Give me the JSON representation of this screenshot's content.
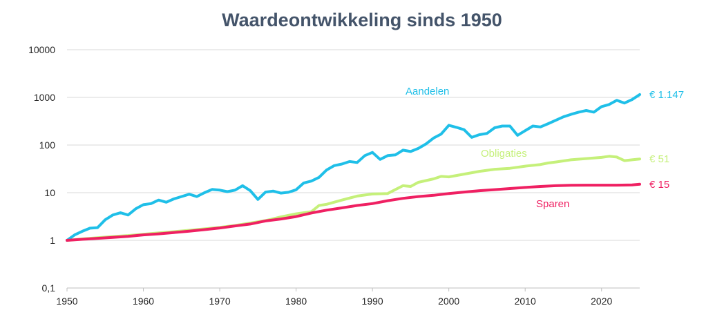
{
  "chart_data": {
    "type": "line",
    "title": "Waardeontwikkeling sinds 1950",
    "xlabel": "",
    "ylabel": "",
    "y_scale": "log",
    "xlim": [
      1950,
      2025
    ],
    "ylim": [
      0.1,
      10000
    ],
    "grid": "horizontal",
    "x_ticks": [
      "1950",
      "1960",
      "1970",
      "1980",
      "1990",
      "2000",
      "2010",
      "2020"
    ],
    "y_ticks": [
      "10000",
      "1000",
      "100",
      "10",
      "1",
      "0,1"
    ],
    "y_tick_values": [
      10000,
      1000,
      100,
      10,
      1,
      0.1
    ],
    "x_tick_values": [
      1950,
      1960,
      1970,
      1980,
      1990,
      2000,
      2010,
      2020
    ],
    "series": [
      {
        "name": "Aandelen",
        "end_label": "€ 1.147",
        "color": "#1fbfe8",
        "x": [
          1950,
          1951,
          1952,
          1953,
          1954,
          1955,
          1956,
          1957,
          1958,
          1959,
          1960,
          1961,
          1962,
          1963,
          1964,
          1965,
          1966,
          1967,
          1968,
          1969,
          1970,
          1971,
          1972,
          1973,
          1974,
          1975,
          1976,
          1977,
          1978,
          1979,
          1980,
          1981,
          1982,
          1983,
          1984,
          1985,
          1986,
          1987,
          1988,
          1989,
          1990,
          1991,
          1992,
          1993,
          1994,
          1995,
          1996,
          1997,
          1998,
          1999,
          2000,
          2001,
          2002,
          2003,
          2004,
          2005,
          2006,
          2007,
          2008,
          2009,
          2010,
          2011,
          2012,
          2013,
          2014,
          2015,
          2016,
          2017,
          2018,
          2019,
          2020,
          2021,
          2022,
          2023,
          2024,
          2025
        ],
        "values": [
          1,
          1.3,
          1.55,
          1.8,
          1.85,
          2.7,
          3.4,
          3.8,
          3.4,
          4.6,
          5.6,
          5.9,
          7.0,
          6.3,
          7.4,
          8.3,
          9.3,
          8.3,
          10.0,
          11.7,
          11.3,
          10.5,
          11.3,
          14.0,
          11.0,
          7.2,
          10.3,
          10.8,
          9.8,
          10.2,
          11.5,
          16.0,
          17.5,
          21.0,
          30.0,
          37.0,
          40.0,
          45.0,
          43.0,
          60.0,
          70.0,
          50.0,
          60.0,
          62.0,
          78.0,
          73.0,
          85.0,
          105.0,
          140.0,
          170.0,
          260.0,
          235.0,
          210.0,
          145.0,
          165.0,
          175.0,
          230.0,
          250.0,
          250.0,
          160.0,
          200.0,
          250.0,
          240.0,
          280.0,
          330.0,
          390.0,
          440.0,
          490.0,
          530.0,
          490.0,
          640.0,
          710.0,
          870.0,
          760.0,
          900.0,
          1147.0
        ]
      },
      {
        "name": "Obligaties",
        "end_label": "€ 51",
        "color": "#c5f07a",
        "x": [
          1950,
          1952,
          1954,
          1956,
          1958,
          1960,
          1962,
          1964,
          1966,
          1968,
          1970,
          1972,
          1974,
          1976,
          1978,
          1980,
          1982,
          1983,
          1984,
          1986,
          1988,
          1990,
          1992,
          1994,
          1995,
          1996,
          1998,
          1999,
          2000,
          2002,
          2004,
          2006,
          2008,
          2010,
          2012,
          2013,
          2014,
          2016,
          2018,
          2020,
          2021,
          2022,
          2023,
          2024,
          2025
        ],
        "values": [
          1,
          1.07,
          1.13,
          1.2,
          1.26,
          1.34,
          1.43,
          1.52,
          1.62,
          1.74,
          1.87,
          2.05,
          2.3,
          2.6,
          3.1,
          3.6,
          4.0,
          5.4,
          5.7,
          7.0,
          8.5,
          9.4,
          9.6,
          14.0,
          13.5,
          16.5,
          19.5,
          22.0,
          21.5,
          24.5,
          28.0,
          31.0,
          32.5,
          36.0,
          39.0,
          42.0,
          44.0,
          49.0,
          52.0,
          55.0,
          58.0,
          56.0,
          47.0,
          49.0,
          51.0
        ]
      },
      {
        "name": "Sparen",
        "end_label": "€ 15",
        "color": "#ef2062",
        "x": [
          1950,
          1952,
          1954,
          1956,
          1958,
          1960,
          1962,
          1964,
          1966,
          1968,
          1970,
          1972,
          1974,
          1976,
          1978,
          1980,
          1982,
          1984,
          1986,
          1988,
          1990,
          1992,
          1994,
          1996,
          1998,
          2000,
          2002,
          2004,
          2006,
          2008,
          2010,
          2012,
          2014,
          2016,
          2018,
          2020,
          2022,
          2024,
          2025
        ],
        "values": [
          1,
          1.05,
          1.1,
          1.15,
          1.21,
          1.3,
          1.37,
          1.46,
          1.56,
          1.68,
          1.82,
          2.0,
          2.2,
          2.55,
          2.8,
          3.15,
          3.75,
          4.3,
          4.8,
          5.4,
          5.9,
          6.8,
          7.6,
          8.3,
          8.8,
          9.6,
          10.3,
          11.0,
          11.6,
          12.2,
          12.9,
          13.5,
          14.0,
          14.3,
          14.4,
          14.4,
          14.4,
          14.6,
          15.0
        ]
      }
    ]
  }
}
